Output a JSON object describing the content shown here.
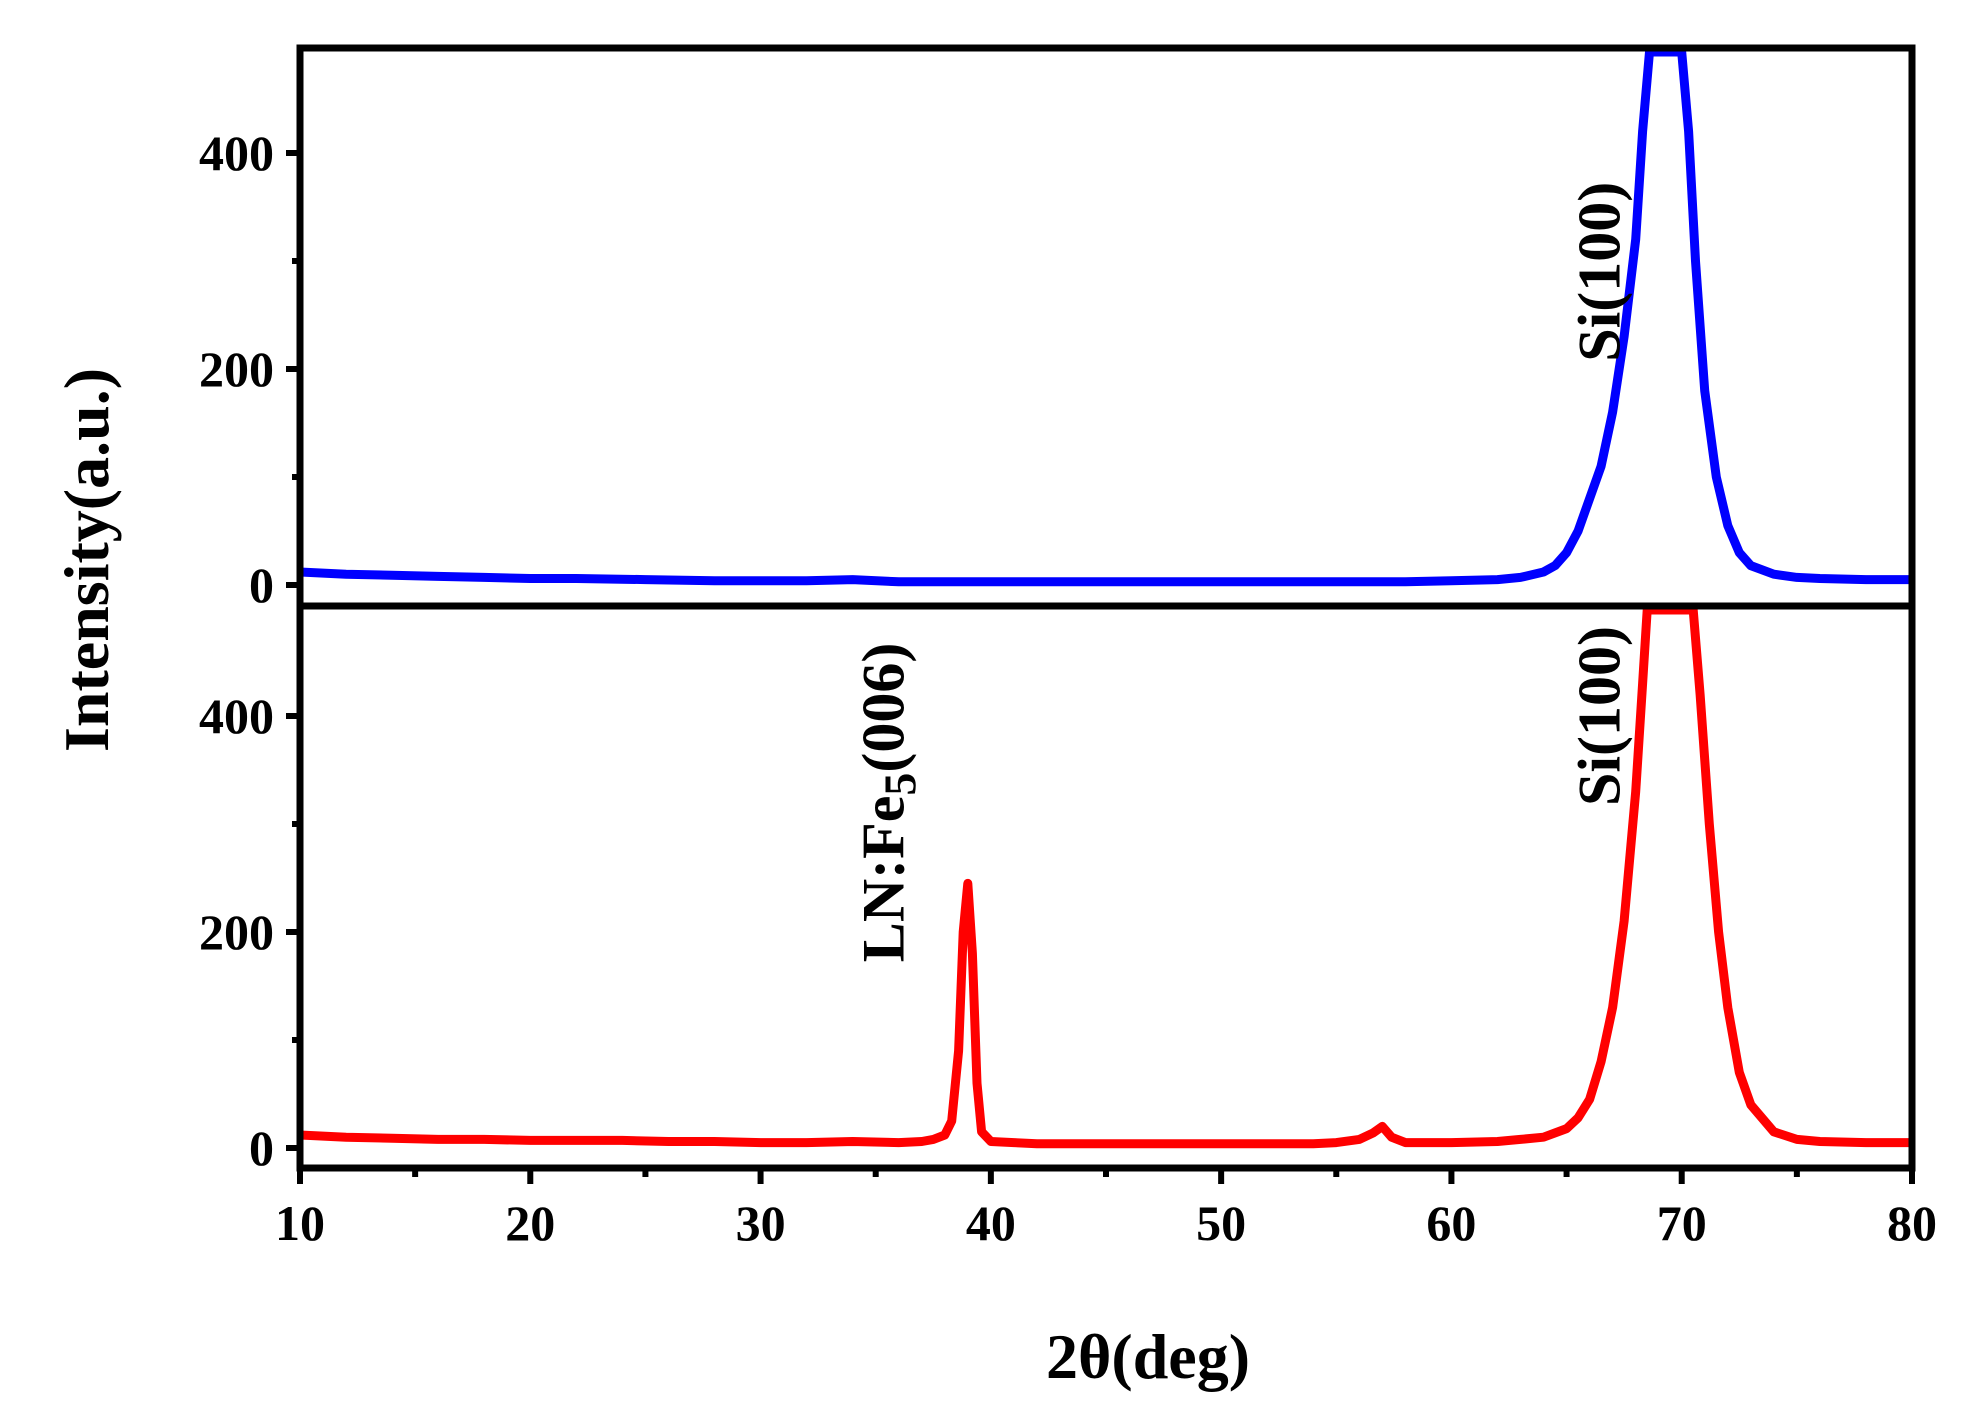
{
  "chart_data": [
    {
      "type": "line",
      "panel": "top",
      "xlim": [
        10,
        80
      ],
      "ylim": [
        -5,
        500
      ],
      "yticks": [
        0,
        200,
        400
      ],
      "grid": false,
      "color": "#0000ff",
      "x": [
        10,
        12,
        14,
        16,
        18,
        20,
        22,
        25,
        28,
        30,
        32,
        34,
        36,
        38,
        40,
        42,
        44,
        46,
        48,
        50,
        52,
        54,
        56,
        58,
        60,
        62,
        63,
        64,
        64.5,
        65,
        65.5,
        66,
        66.5,
        67,
        67.5,
        68,
        68.3,
        68.6,
        68.8,
        69.0,
        69.2,
        69.4,
        69.6,
        69.8,
        70.0,
        70.3,
        70.6,
        71,
        71.5,
        72,
        72.5,
        73,
        74,
        75,
        76,
        78,
        80
      ],
      "y": [
        12,
        10,
        9,
        8,
        7,
        6,
        6,
        5,
        4,
        4,
        4,
        5,
        3,
        3,
        3,
        3,
        3,
        3,
        3,
        3,
        3,
        3,
        3,
        3,
        4,
        5,
        7,
        12,
        18,
        30,
        50,
        80,
        110,
        160,
        230,
        320,
        420,
        500,
        500,
        500,
        500,
        500,
        500,
        500,
        500,
        420,
        300,
        180,
        100,
        55,
        30,
        18,
        10,
        7,
        6,
        5,
        5
      ],
      "annotations": [
        {
          "text": "Si(100)",
          "x": 67.3,
          "y": 290,
          "rotation": -90
        }
      ]
    },
    {
      "type": "line",
      "panel": "bottom",
      "xlim": [
        10,
        80
      ],
      "ylim": [
        -5,
        500
      ],
      "yticks": [
        0,
        200,
        400
      ],
      "xticks": [
        10,
        20,
        30,
        40,
        50,
        60,
        70,
        80
      ],
      "xlabel": "2θ(deg)",
      "grid": false,
      "color": "#ff0000",
      "x": [
        10,
        12,
        14,
        16,
        18,
        20,
        22,
        24,
        26,
        28,
        30,
        32,
        34,
        36,
        37,
        37.5,
        38,
        38.3,
        38.6,
        38.8,
        39.0,
        39.2,
        39.4,
        39.6,
        40,
        41,
        42,
        44,
        46,
        48,
        50,
        52,
        54,
        55,
        56,
        56.6,
        57.0,
        57.4,
        58,
        60,
        62,
        63,
        64,
        65,
        65.5,
        66,
        66.5,
        67,
        67.5,
        68,
        68.3,
        68.5,
        68.7,
        69,
        69.3,
        69.6,
        69.9,
        70.2,
        70.5,
        70.8,
        71.2,
        71.6,
        72,
        72.5,
        73,
        74,
        75,
        76,
        78,
        80
      ],
      "y": [
        12,
        10,
        9,
        8,
        8,
        7,
        7,
        7,
        6,
        6,
        5,
        5,
        6,
        5,
        6,
        8,
        12,
        25,
        90,
        200,
        245,
        180,
        60,
        15,
        6,
        5,
        4,
        4,
        4,
        4,
        4,
        4,
        4,
        5,
        8,
        14,
        20,
        10,
        5,
        5,
        6,
        8,
        10,
        18,
        28,
        45,
        80,
        130,
        210,
        330,
        430,
        500,
        500,
        500,
        500,
        500,
        500,
        500,
        500,
        420,
        300,
        200,
        130,
        70,
        40,
        15,
        8,
        6,
        5,
        5
      ],
      "annotations": [
        {
          "text": "LN:Fe",
          "subscript": "5",
          "suffix": "(006)",
          "x": 36.2,
          "y": 320,
          "rotation": -90
        },
        {
          "text": "Si(100)",
          "x": 67.3,
          "y": 400,
          "rotation": -90
        }
      ]
    }
  ],
  "shared": {
    "ylabel": "Intensity(a.u.)"
  }
}
